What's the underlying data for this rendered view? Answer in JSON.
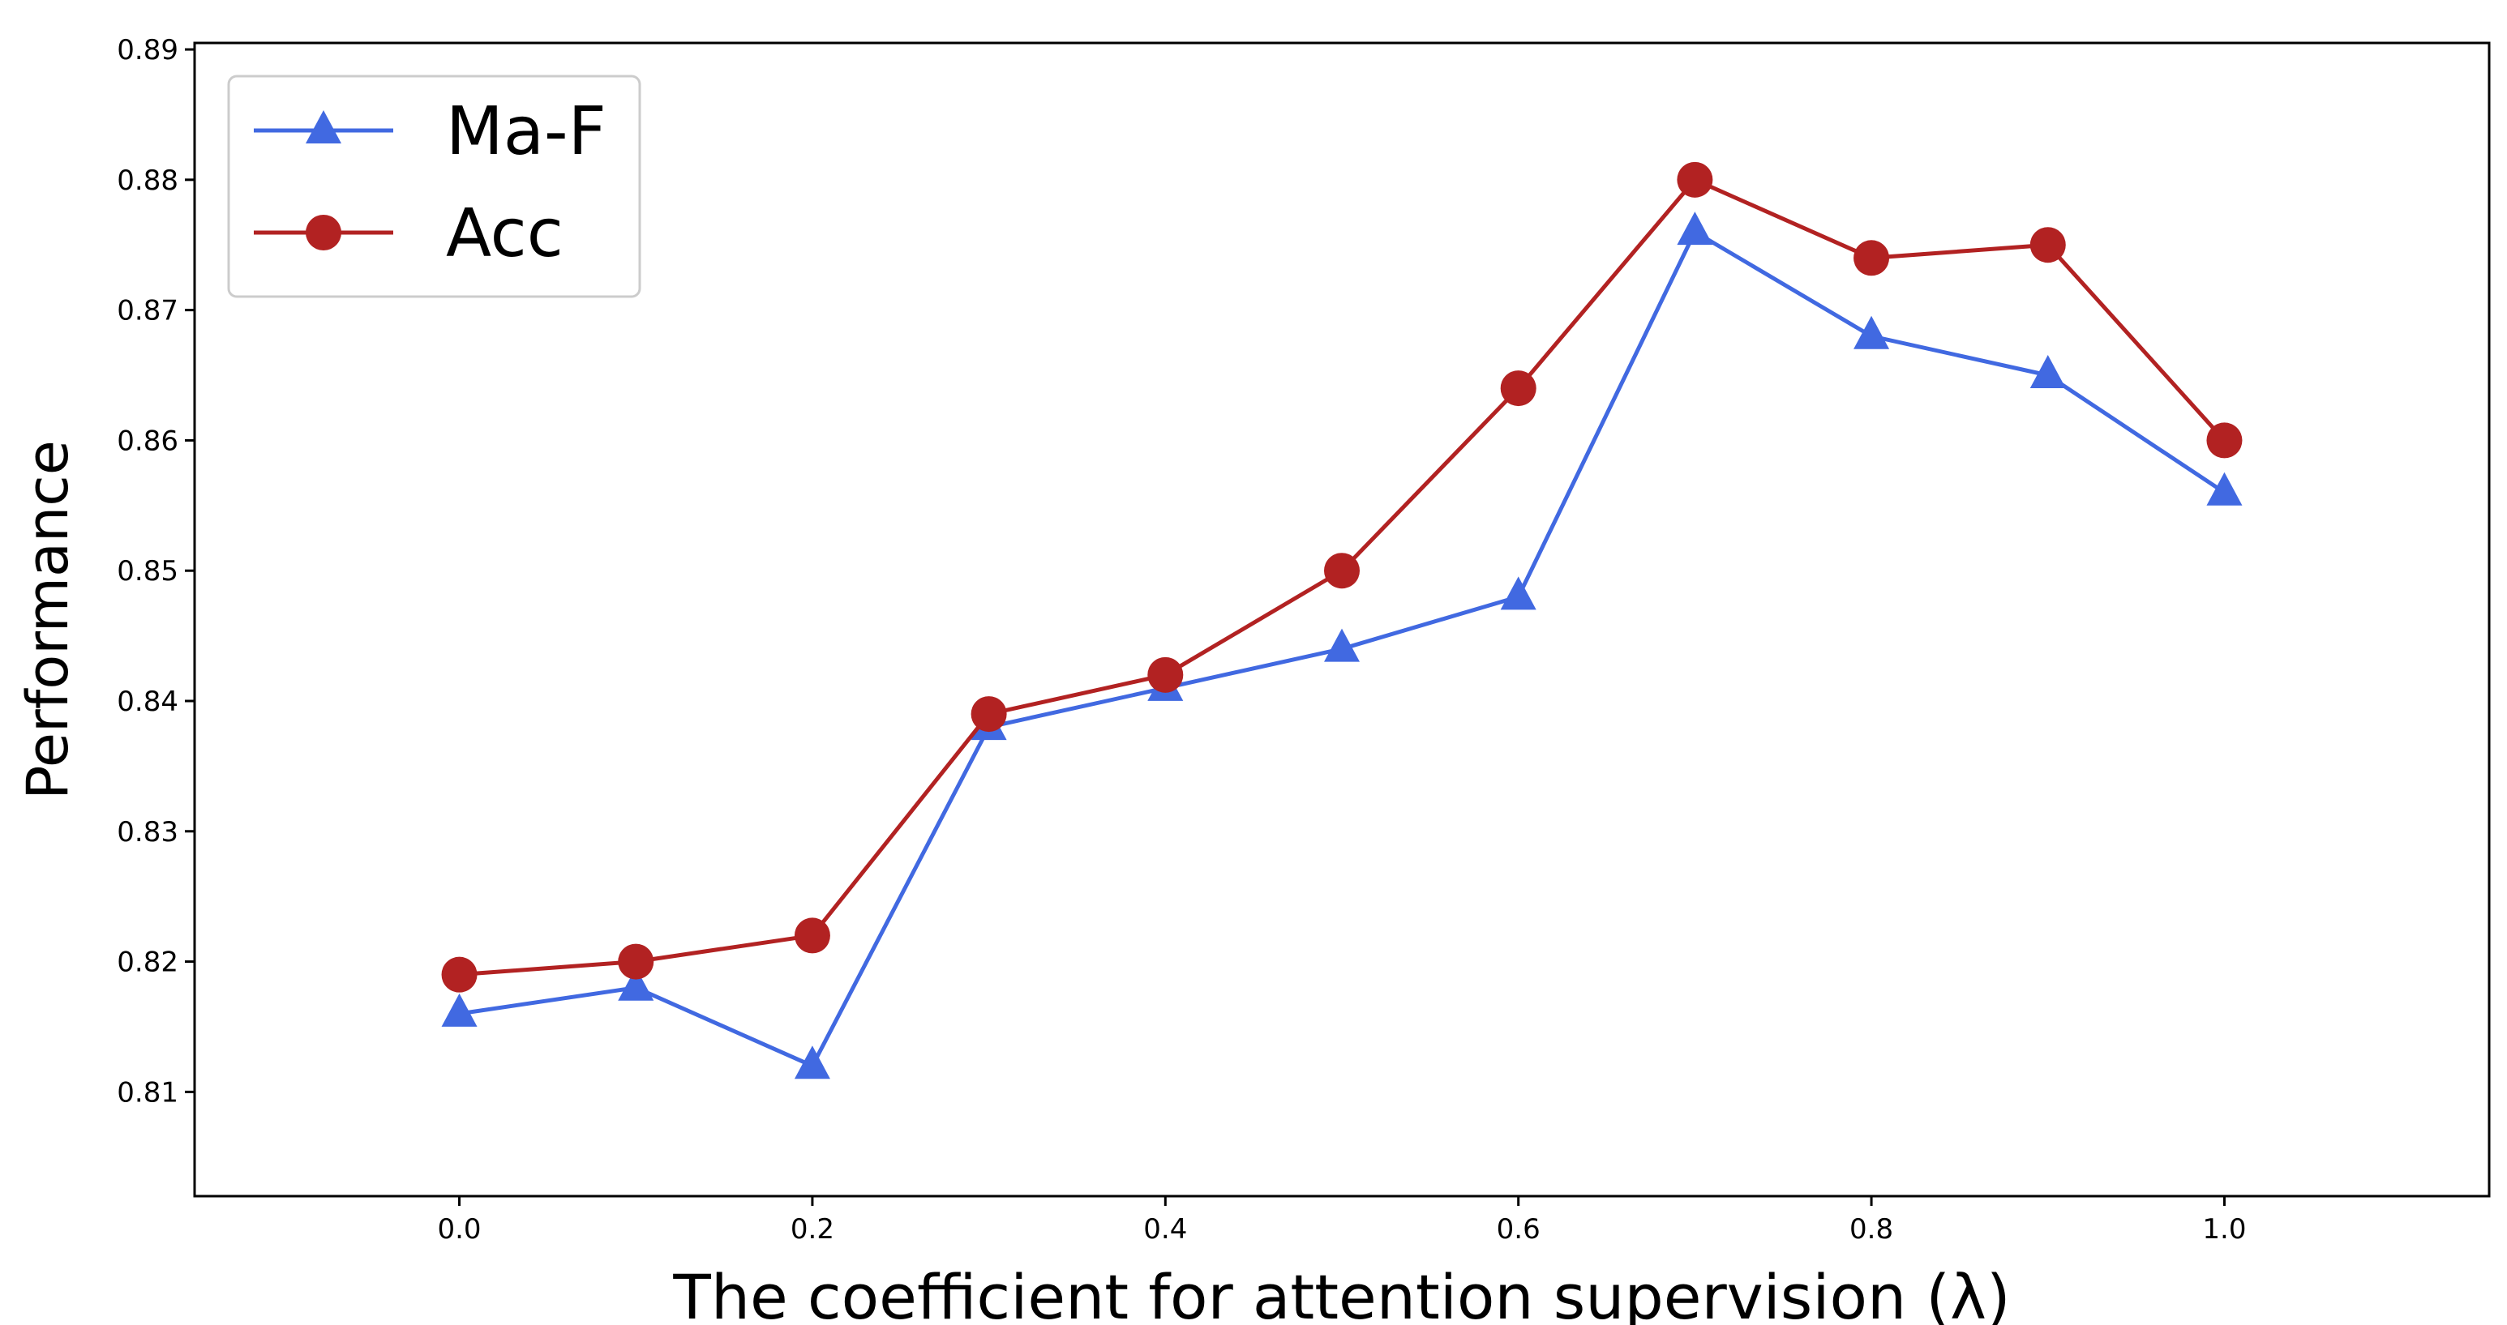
{
  "chart_data": {
    "type": "line",
    "title": "",
    "xlabel": "The coefficient for attention supervision (λ)",
    "ylabel": "Performance",
    "xlim": [
      -0.15,
      1.15
    ],
    "ylim": [
      0.802,
      0.8905
    ],
    "x_ticks": [
      0.0,
      0.2,
      0.4,
      0.6,
      0.8,
      1.0
    ],
    "x_tick_labels": [
      "0.0",
      "0.2",
      "0.4",
      "0.6",
      "0.8",
      "1.0"
    ],
    "y_ticks": [
      0.81,
      0.82,
      0.83,
      0.84,
      0.85,
      0.86,
      0.87,
      0.88,
      0.89
    ],
    "y_tick_labels": [
      "0.81",
      "0.82",
      "0.83",
      "0.84",
      "0.85",
      "0.86",
      "0.87",
      "0.88",
      "0.89"
    ],
    "x": [
      0.0,
      0.1,
      0.2,
      0.3,
      0.4,
      0.5,
      0.6,
      0.7,
      0.8,
      0.9,
      1.0
    ],
    "series": [
      {
        "name": "Ma-F",
        "marker": "triangle",
        "color": "#4169E1",
        "values": [
          0.816,
          0.818,
          0.812,
          0.838,
          0.841,
          0.844,
          0.848,
          0.876,
          0.868,
          0.865,
          0.856
        ]
      },
      {
        "name": "Acc",
        "marker": "circle",
        "color": "#B22222",
        "values": [
          0.819,
          0.82,
          0.822,
          0.839,
          0.842,
          0.85,
          0.864,
          0.88,
          0.874,
          0.875,
          0.86
        ]
      }
    ],
    "grid": false,
    "legend_position": "top-left"
  }
}
